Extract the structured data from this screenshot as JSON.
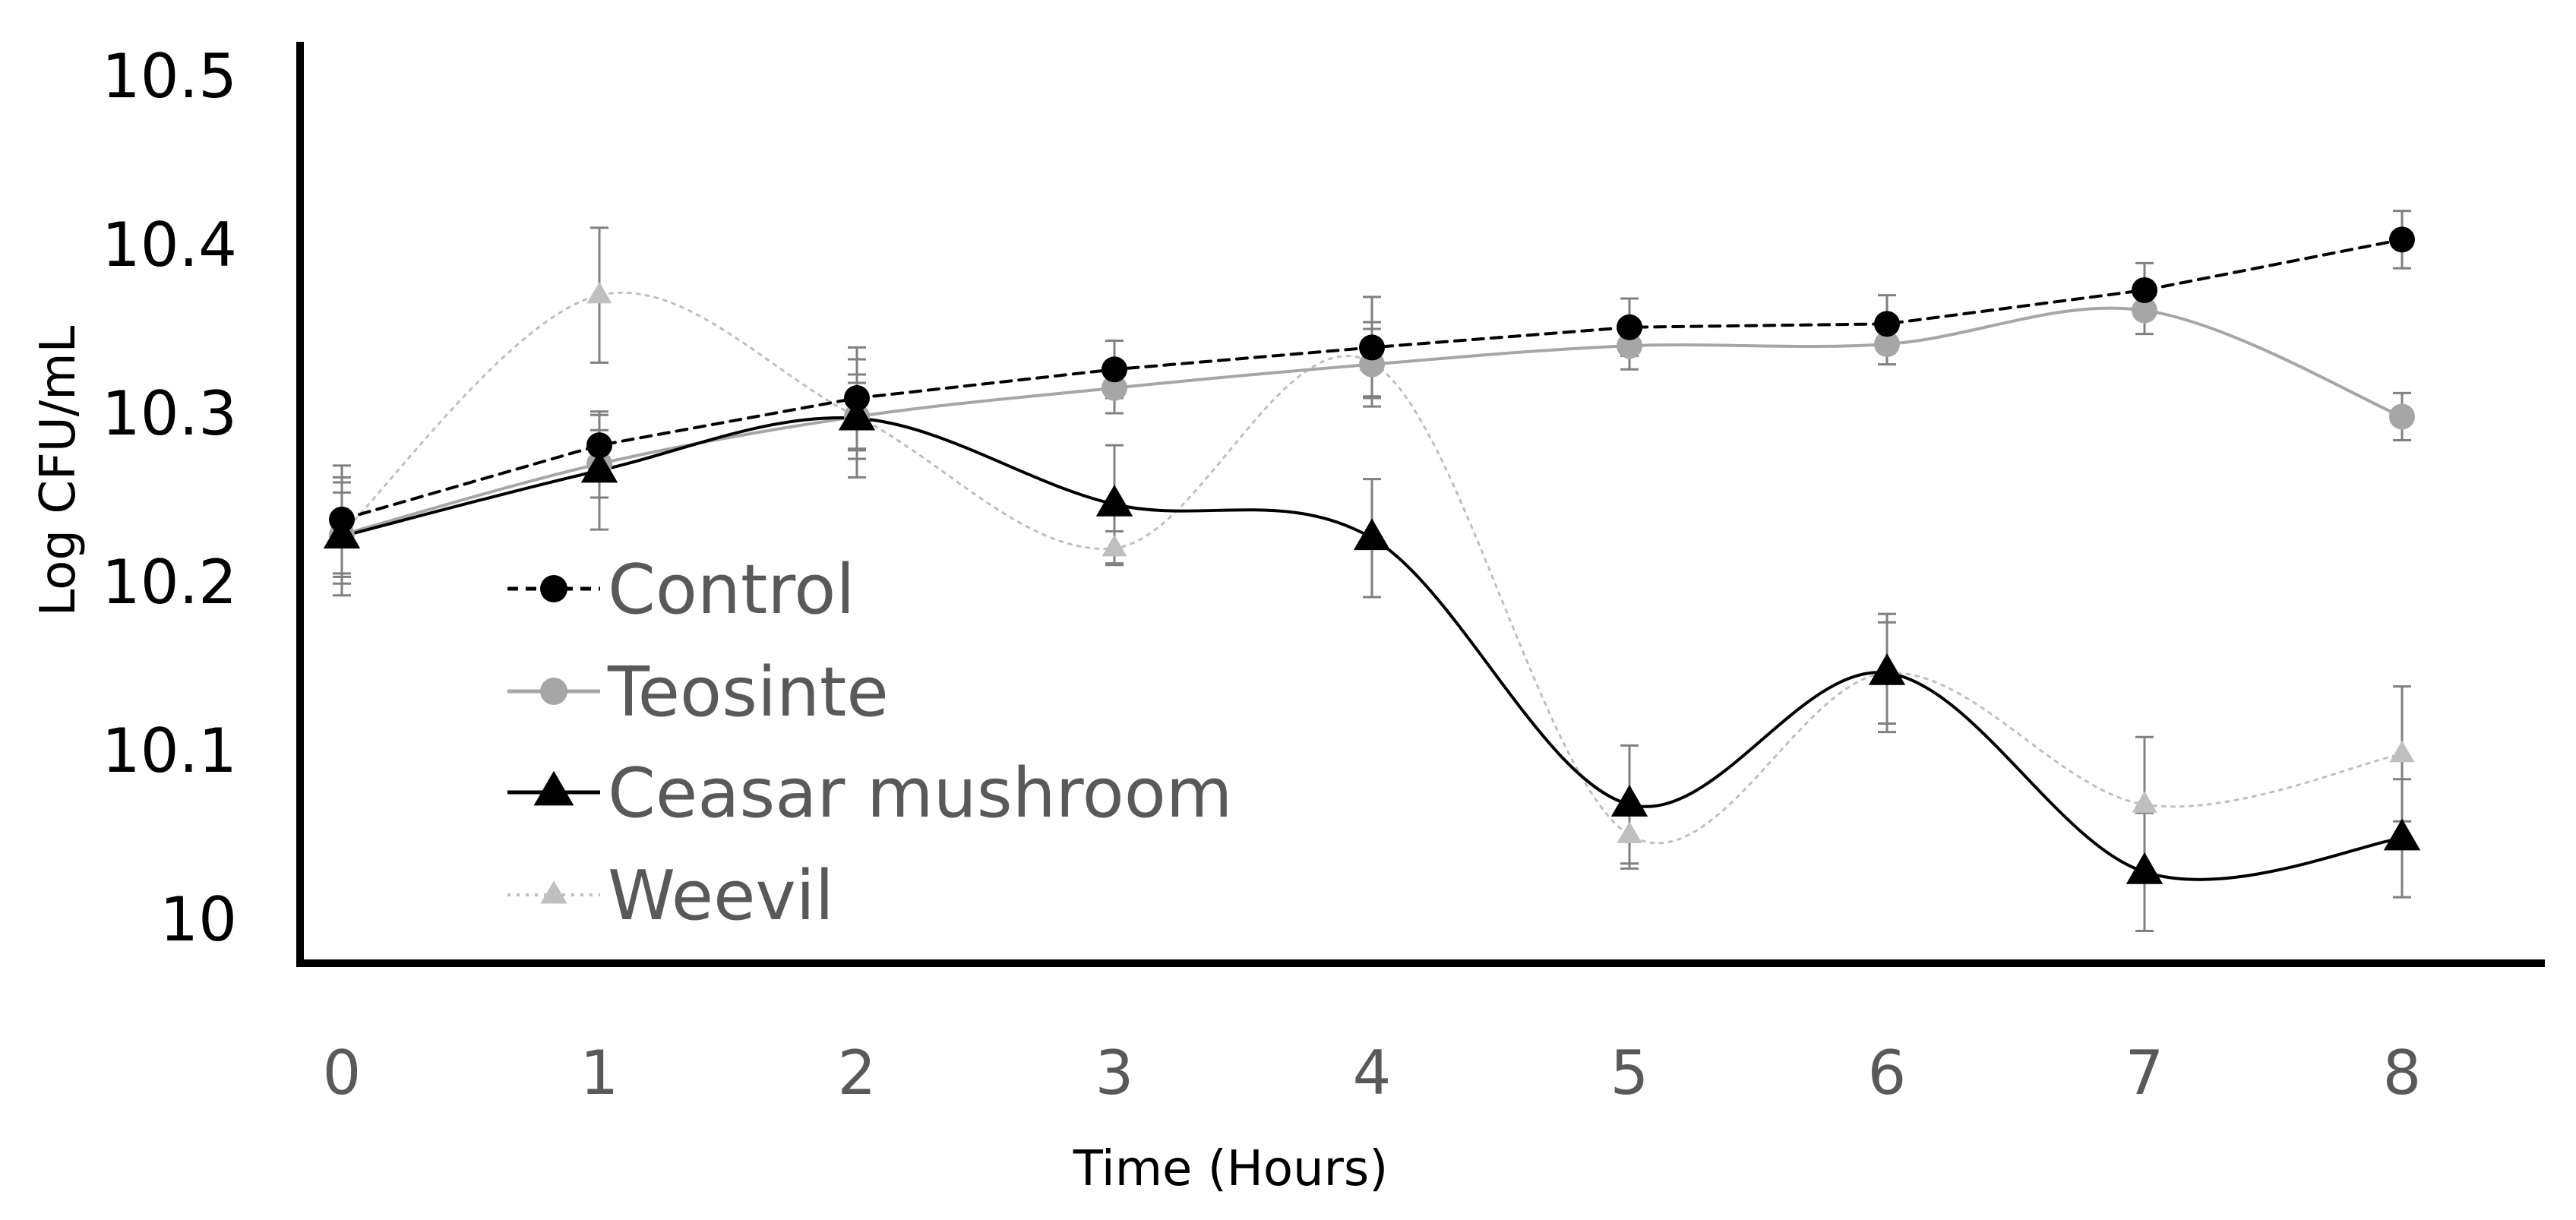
{
  "chart_data": {
    "type": "line",
    "title": "",
    "xlabel": "Time (Hours)",
    "ylabel": "Log CFU/mL",
    "x": [
      0,
      1,
      2,
      3,
      4,
      5,
      6,
      7,
      8
    ],
    "x_tick_labels": [
      "0",
      "1",
      "2",
      "3",
      "4",
      "5",
      "6",
      "7",
      "8"
    ],
    "ylim": [
      10.0,
      10.5
    ],
    "y_ticks": [
      10.0,
      10.1,
      10.2,
      10.3,
      10.4,
      10.5
    ],
    "y_tick_labels": [
      "10",
      "10.1",
      "10.2",
      "10.3",
      "10.4",
      "10.5"
    ],
    "grid": false,
    "legend_position": "left-middle",
    "series": [
      {
        "name": "Control",
        "values": [
          10.237,
          10.281,
          10.309,
          10.326,
          10.339,
          10.351,
          10.353,
          10.373,
          10.403
        ],
        "errors": [
          0.032,
          0.018,
          0.03,
          0.017,
          0.03,
          0.017,
          0.017,
          0.016,
          0.017
        ],
        "color": "#000000",
        "line_style": "dashed",
        "marker": "circle"
      },
      {
        "name": "Teosinte",
        "values": [
          10.228,
          10.27,
          10.298,
          10.315,
          10.329,
          10.34,
          10.341,
          10.361,
          10.298
        ],
        "errors": [
          0.025,
          0.02,
          0.025,
          0.015,
          0.025,
          0.014,
          0.012,
          0.014,
          0.014
        ],
        "color": "#A6A6A6",
        "line_style": "solid",
        "marker": "circle"
      },
      {
        "name": "Ceasar mushroom",
        "values": [
          10.227,
          10.266,
          10.297,
          10.246,
          10.226,
          10.068,
          10.146,
          10.028,
          10.048
        ],
        "errors": [
          0.035,
          0.035,
          0.035,
          0.035,
          0.035,
          0.035,
          0.035,
          0.035,
          0.035
        ],
        "color": "#000000",
        "line_style": "solid",
        "marker": "triangle"
      },
      {
        "name": "Weevil",
        "values": [
          10.229,
          10.37,
          10.298,
          10.22,
          10.33,
          10.05,
          10.146,
          10.068,
          10.098
        ],
        "errors": [
          0.03,
          0.04,
          0.02,
          0.01,
          0.02,
          0.02,
          0.03,
          0.04,
          0.04
        ],
        "color": "#BFBFBF",
        "line_style": "dotted",
        "marker": "triangle"
      }
    ]
  }
}
